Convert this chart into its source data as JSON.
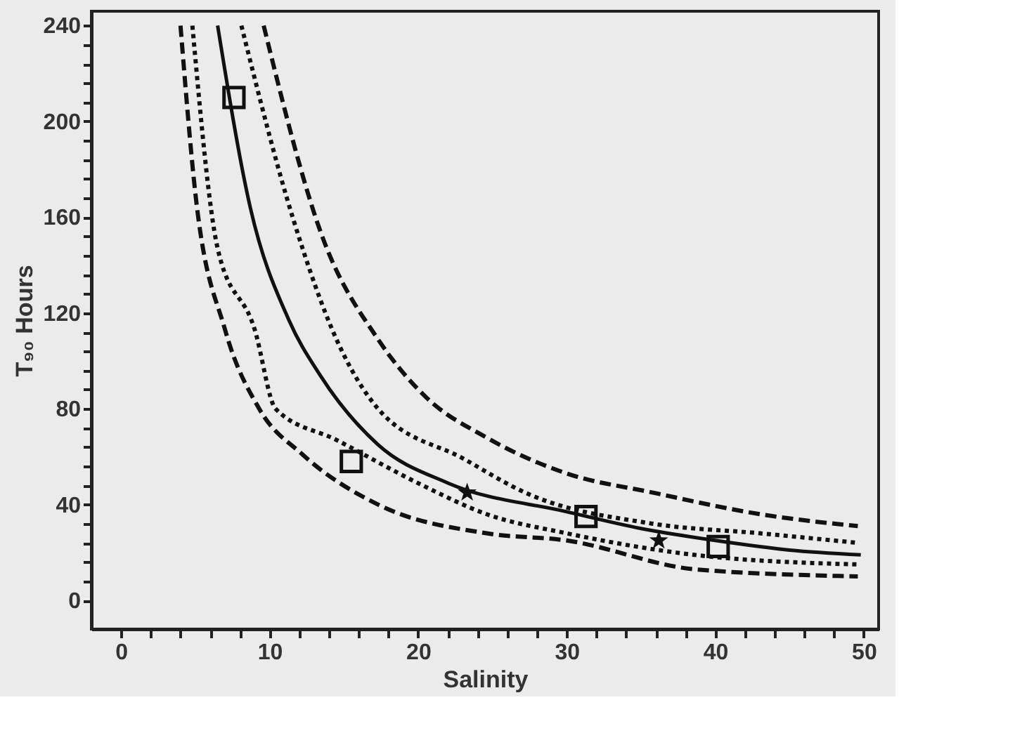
{
  "chart_data": {
    "type": "line",
    "xlabel": "Salinity",
    "ylabel": "T₉₀ Hours",
    "xlim": [
      -2,
      51
    ],
    "ylim": [
      -12,
      246
    ],
    "xticks": [
      0,
      {
        "value": 2,
        "label": null
      },
      {
        "value": 4,
        "label": null
      },
      {
        "value": 6,
        "label": null
      },
      {
        "value": 8,
        "label": null
      },
      10,
      {
        "value": 12,
        "label": null
      },
      {
        "value": 14,
        "label": null
      },
      {
        "value": 16,
        "label": null
      },
      {
        "value": 18,
        "label": null
      },
      20,
      {
        "value": 22,
        "label": null
      },
      {
        "value": 24,
        "label": null
      },
      {
        "value": 26,
        "label": null
      },
      {
        "value": 28,
        "label": null
      },
      30,
      {
        "value": 32,
        "label": null
      },
      {
        "value": 34,
        "label": null
      },
      {
        "value": 36,
        "label": null
      },
      {
        "value": 38,
        "label": null
      },
      40,
      {
        "value": 42,
        "label": null
      },
      {
        "value": 44,
        "label": null
      },
      {
        "value": 46,
        "label": null
      },
      {
        "value": 48,
        "label": null
      },
      50
    ],
    "yticks": [
      0,
      {
        "value": 8,
        "label": null
      },
      {
        "value": 16,
        "label": null
      },
      {
        "value": 24,
        "label": null
      },
      {
        "value": 32,
        "label": null
      },
      40,
      {
        "value": 48,
        "label": null
      },
      {
        "value": 56,
        "label": null
      },
      {
        "value": 64,
        "label": null
      },
      {
        "value": 72,
        "label": null
      },
      80,
      {
        "value": 88,
        "label": null
      },
      {
        "value": 96,
        "label": null
      },
      {
        "value": 104,
        "label": null
      },
      {
        "value": 112,
        "label": null
      },
      120,
      {
        "value": 128,
        "label": null
      },
      {
        "value": 136,
        "label": null
      },
      {
        "value": 144,
        "label": null
      },
      {
        "value": 152,
        "label": null
      },
      160,
      {
        "value": 168,
        "label": null
      },
      {
        "value": 176,
        "label": null
      },
      {
        "value": 184,
        "label": null
      },
      {
        "value": 192,
        "label": null
      },
      200,
      {
        "value": 208,
        "label": null
      },
      {
        "value": 216,
        "label": null
      },
      {
        "value": 224,
        "label": null
      },
      {
        "value": 232,
        "label": null
      },
      240
    ],
    "grid": false,
    "series": [
      {
        "type": "line",
        "color": "#111111",
        "line_style": "solid",
        "x": [
          6.5,
          8.7,
          11.3,
          13.4,
          17.3,
          22,
          30,
          35,
          40,
          45,
          49.8
        ],
        "values": [
          240,
          164,
          117,
          94,
          65,
          49,
          37,
          30,
          25,
          21,
          19
        ]
      },
      {
        "type": "line",
        "color": "#111111",
        "line_style": "dashed",
        "x": [
          9.6,
          13.6,
          17.3,
          20.5,
          24.6,
          30,
          35.8,
          43,
          49.6
        ],
        "values": [
          240,
          151,
          109,
          85,
          68,
          53,
          45,
          36,
          31
        ]
      },
      {
        "type": "line",
        "color": "#111111",
        "line_style": "dotted",
        "x": [
          8.1,
          11.6,
          14.5,
          17.3,
          23.1,
          27.2,
          35.8,
          43,
          49.6
        ],
        "values": [
          240,
          159,
          109,
          80,
          59,
          45,
          32,
          28,
          24
        ]
      },
      {
        "type": "line",
        "color": "#111111",
        "line_style": "dotted",
        "x": [
          4.8,
          6.5,
          9,
          10.4,
          14.5,
          20.3,
          24.6,
          30,
          38.6,
          49.6
        ],
        "values": [
          240,
          147,
          113,
          80,
          67,
          48,
          36,
          28,
          19,
          15
        ]
      },
      {
        "type": "line",
        "color": "#111111",
        "line_style": "dashed",
        "x": [
          4,
          5,
          7,
          9.3,
          12.2,
          17.3,
          24.6,
          30,
          38.6,
          49.6
        ],
        "values": [
          240,
          170,
          113,
          80,
          61,
          40,
          28,
          25,
          13,
          10
        ]
      },
      {
        "type": "scatter",
        "color": "#111111",
        "marker": "square",
        "x": [
          7.6,
          15.5,
          31.3,
          40.2
        ],
        "values": [
          210,
          58,
          35,
          22.5
        ]
      },
      {
        "type": "scatter",
        "color": "#111111",
        "marker": "star",
        "x": [
          23.3,
          36.2
        ],
        "values": [
          45,
          25
        ]
      }
    ]
  }
}
